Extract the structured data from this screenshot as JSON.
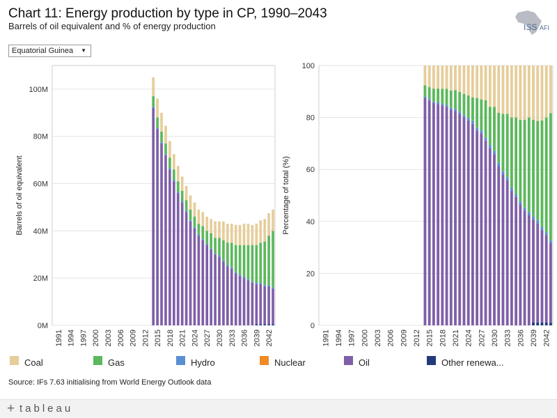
{
  "header": {
    "title": "Chart 11: Energy production by type in CP, 1990–2043",
    "subtitle": "Barrels of oil equivalent and % of energy production"
  },
  "logo": {
    "text": "ISS",
    "text2": "AFI"
  },
  "filter": {
    "selected": "Equatorial Guinea",
    "arrow": "▼"
  },
  "legend": [
    {
      "key": "coal",
      "label": "Coal",
      "color": "#e6cd9a"
    },
    {
      "key": "gas",
      "label": "Gas",
      "color": "#5cb85c"
    },
    {
      "key": "hydro",
      "label": "Hydro",
      "color": "#5b8fd4"
    },
    {
      "key": "nuclear",
      "label": "Nuclear",
      "color": "#f08a24"
    },
    {
      "key": "oil",
      "label": "Oil",
      "color": "#7f5fa8"
    },
    {
      "key": "other",
      "label": "Other renewa...",
      "color": "#233a7a"
    }
  ],
  "source": "Source: IFs 7.63 initialising from World Energy Outlook data",
  "footer": {
    "brand": "tableau",
    "plus": "+"
  },
  "chart_data": [
    {
      "type": "bar",
      "stacked": true,
      "title": "",
      "ylabel": "Barrels of oil equivalent",
      "ylim": [
        0,
        110
      ],
      "yunit": "M",
      "yticks": [
        0,
        20,
        40,
        60,
        80,
        100
      ],
      "ytick_labels": [
        "0M",
        "20M",
        "40M",
        "60M",
        "80M",
        "100M"
      ],
      "x_start": 1990,
      "x_end": 2043,
      "xtick_labels": [
        "1991",
        "1994",
        "1997",
        "2000",
        "2003",
        "2006",
        "2009",
        "2012",
        "2015",
        "2018",
        "2021",
        "2024",
        "2027",
        "2030",
        "2033",
        "2036",
        "2039",
        "2042"
      ],
      "note": "Values before 2014 are zero (no bars shown).",
      "x": [
        2014,
        2015,
        2016,
        2017,
        2018,
        2019,
        2020,
        2021,
        2022,
        2023,
        2024,
        2025,
        2026,
        2027,
        2028,
        2029,
        2030,
        2031,
        2032,
        2033,
        2034,
        2035,
        2036,
        2037,
        2038,
        2039,
        2040,
        2041,
        2042,
        2043
      ],
      "series": [
        {
          "name": "Oil",
          "values": [
            92,
            83,
            77,
            72,
            66,
            61,
            56,
            52,
            48,
            44,
            41,
            38,
            36,
            34,
            32,
            30,
            29,
            27,
            25,
            24,
            22,
            21,
            20,
            19,
            18,
            17,
            17,
            16,
            16,
            15
          ]
        },
        {
          "name": "Other renewables",
          "values": [
            0,
            0,
            0,
            0,
            0,
            0,
            0,
            0,
            0,
            0,
            0,
            0,
            0,
            0,
            0,
            0,
            0,
            0,
            0,
            0,
            0,
            0,
            0,
            0,
            0,
            0.5,
            0.5,
            0.5,
            0.5,
            0.5
          ]
        },
        {
          "name": "Hydro",
          "values": [
            0.5,
            0.5,
            0.5,
            0.5,
            0.5,
            0.5,
            0.5,
            0.5,
            0.5,
            0.5,
            0.5,
            0.5,
            0.5,
            0.5,
            0.5,
            0.5,
            0.5,
            0.5,
            0.5,
            0.5,
            0.5,
            0.5,
            0.5,
            0.5,
            0.5,
            0.5,
            0.5,
            0.5,
            0.5,
            0.5
          ]
        },
        {
          "name": "Nuclear",
          "values": [
            0,
            0,
            0,
            0,
            0,
            0,
            0,
            0,
            0,
            0,
            0,
            0,
            0,
            0,
            0,
            0,
            0,
            0,
            0,
            0,
            0,
            0,
            0,
            0,
            0,
            0,
            0,
            0,
            0,
            0
          ]
        },
        {
          "name": "Gas",
          "values": [
            4.5,
            4.5,
            4.5,
            4.5,
            4.5,
            4.5,
            4.5,
            4.5,
            4.5,
            4.5,
            4.5,
            4.5,
            5.5,
            5.5,
            6.5,
            6.5,
            7.5,
            8.5,
            9.5,
            10.5,
            11.5,
            12.5,
            13.5,
            14.5,
            15.5,
            16,
            17,
            18.5,
            21,
            24
          ]
        },
        {
          "name": "Coal",
          "values": [
            8,
            8,
            8,
            7.5,
            7,
            6.5,
            6.5,
            6,
            6,
            6,
            6,
            6,
            6,
            6,
            6,
            7,
            7,
            8,
            8,
            8,
            8.5,
            8.5,
            9,
            9,
            8.5,
            9,
            9.5,
            9.5,
            9.5,
            9
          ]
        }
      ]
    },
    {
      "type": "bar",
      "stacked": true,
      "percent": true,
      "title": "",
      "ylabel": "Percentage of total (%)",
      "ylim": [
        0,
        100
      ],
      "yticks": [
        0,
        20,
        40,
        60,
        80,
        100
      ],
      "ytick_labels": [
        "0",
        "20",
        "40",
        "60",
        "80",
        "100"
      ],
      "x_start": 1990,
      "x_end": 2043,
      "xtick_labels": [
        "1991",
        "1994",
        "1997",
        "2000",
        "2003",
        "2006",
        "2009",
        "2012",
        "2015",
        "2018",
        "2021",
        "2024",
        "2027",
        "2030",
        "2033",
        "2036",
        "2039",
        "2042"
      ],
      "note": "Percentage share of each energy type, derived from the left chart."
    }
  ]
}
